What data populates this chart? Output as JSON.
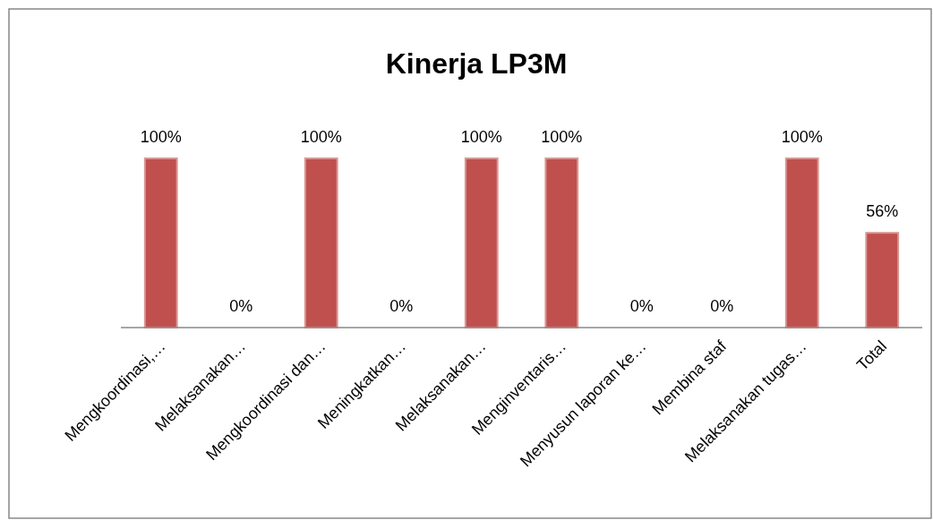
{
  "chart_data": {
    "type": "bar",
    "title": "Kinerja LP3M",
    "categories": [
      "Mengkoordinasi,…",
      "Melaksanakan…",
      "Mengkoordinasi dan…",
      "Meningkatkan…",
      "Melaksanakan…",
      "Menginventaris…",
      "Menyusun laporan ke…",
      "Membina staf",
      "Melaksanakan tugas…",
      "Total"
    ],
    "values": [
      100,
      0,
      100,
      0,
      100,
      100,
      0,
      0,
      100,
      56
    ],
    "value_labels": [
      "100%",
      "0%",
      "100%",
      "0%",
      "100%",
      "100%",
      "0%",
      "0%",
      "100%",
      "56%"
    ],
    "color": "#c0504d"
  }
}
